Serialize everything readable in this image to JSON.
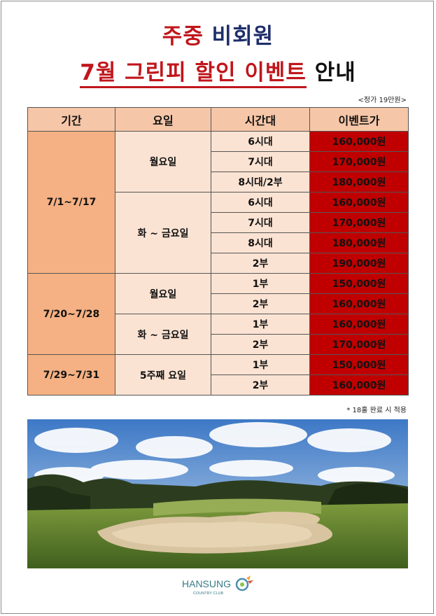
{
  "title": {
    "line1_a": "주중",
    "line1_b": "비회원",
    "line2_a": "7월 그린피 할인 이벤트",
    "line2_b": "안내"
  },
  "note_top": "<정가 19만원>",
  "table": {
    "headers": [
      "기간",
      "요일",
      "시간대",
      "이벤트가"
    ],
    "groups": [
      {
        "period": "7/1~7/17",
        "days": [
          {
            "day": "월요일",
            "rows": [
              {
                "slot": "6시대",
                "price": "160,000원",
                "highlight": true
              },
              {
                "slot": "7시대",
                "price": "170,000원",
                "highlight": false
              },
              {
                "slot": "8시대/2부",
                "price": "180,000원",
                "highlight": false
              }
            ]
          },
          {
            "day": "화 ~ 금요일",
            "rows": [
              {
                "slot": "6시대",
                "price": "160,000원",
                "highlight": true
              },
              {
                "slot": "7시대",
                "price": "170,000원",
                "highlight": false
              },
              {
                "slot": "8시대",
                "price": "180,000원",
                "highlight": false
              },
              {
                "slot": "2부",
                "price": "190,000원",
                "highlight": false
              }
            ]
          }
        ]
      },
      {
        "period": "7/20~7/28",
        "days": [
          {
            "day": "월요일",
            "rows": [
              {
                "slot": "1부",
                "price": "150,000원",
                "highlight": true
              },
              {
                "slot": "2부",
                "price": "160,000원",
                "highlight": false
              }
            ]
          },
          {
            "day": "화 ~ 금요일",
            "rows": [
              {
                "slot": "1부",
                "price": "160,000원",
                "highlight": true
              },
              {
                "slot": "2부",
                "price": "170,000원",
                "highlight": false
              }
            ]
          }
        ]
      },
      {
        "period": "7/29~7/31",
        "days": [
          {
            "day": "5주째 요일",
            "rows": [
              {
                "slot": "1부",
                "price": "150,000원",
                "highlight": true
              },
              {
                "slot": "2부",
                "price": "160,000원",
                "highlight": false
              }
            ]
          }
        ]
      }
    ]
  },
  "note_bottom": "* 18홀 완료 시 적용",
  "logo": {
    "name": "HANSUNG",
    "sub": "COUNTRY CLUB"
  },
  "colors": {
    "accent_red": "#c0161b",
    "navy": "#1f2f6b",
    "header_bg": "#f6c6a8",
    "period_bg": "#f5b183",
    "cell_bg": "#fbe3d3",
    "price_bg": "#c00000",
    "highlight": "#ffff00"
  }
}
